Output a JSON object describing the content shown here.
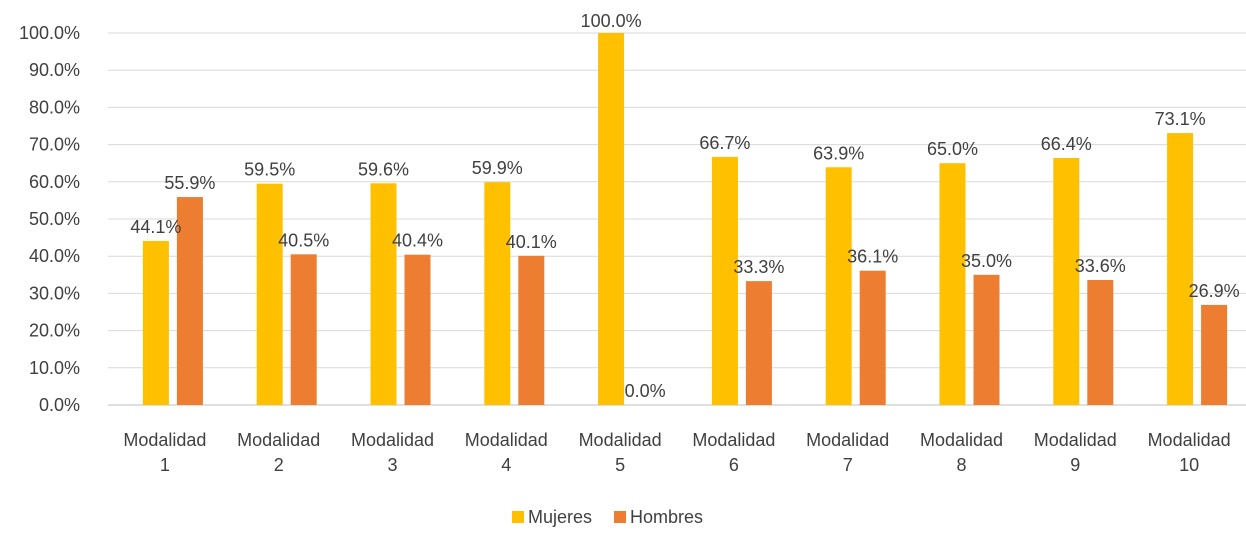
{
  "chart_data": {
    "type": "bar",
    "title": "",
    "xlabel": "",
    "ylabel": "",
    "categories": [
      [
        "Modalidad",
        "1"
      ],
      [
        "Modalidad",
        "2"
      ],
      [
        "Modalidad",
        "3"
      ],
      [
        "Modalidad",
        "4"
      ],
      [
        "Modalidad",
        "5"
      ],
      [
        "Modalidad",
        "6"
      ],
      [
        "Modalidad",
        "7"
      ],
      [
        "Modalidad",
        "8"
      ],
      [
        "Modalidad",
        "9"
      ],
      [
        "Modalidad",
        "10"
      ]
    ],
    "series": [
      {
        "name": "Mujeres",
        "color": "#FFC000",
        "values": [
          44.1,
          59.5,
          59.6,
          59.9,
          100.0,
          66.7,
          63.9,
          65.0,
          66.4,
          73.1
        ],
        "labels": [
          "44.1%",
          "59.5%",
          "59.6%",
          "59.9%",
          "100.0%",
          "66.7%",
          "63.9%",
          "65.0%",
          "66.4%",
          "73.1%"
        ]
      },
      {
        "name": "Hombres",
        "color": "#ED7D31",
        "values": [
          55.9,
          40.5,
          40.4,
          40.1,
          0.0,
          33.3,
          36.1,
          35.0,
          33.6,
          26.9
        ],
        "labels": [
          "55.9%",
          "40.5%",
          "40.4%",
          "40.1%",
          "0.0%",
          "33.3%",
          "36.1%",
          "35.0%",
          "33.6%",
          "26.9%"
        ]
      }
    ],
    "ylim": [
      0,
      100
    ],
    "yticks": [
      "0.0%",
      "10.0%",
      "20.0%",
      "30.0%",
      "40.0%",
      "50.0%",
      "60.0%",
      "70.0%",
      "80.0%",
      "90.0%",
      "100.0%"
    ],
    "grid": true,
    "legend_position": "bottom"
  }
}
